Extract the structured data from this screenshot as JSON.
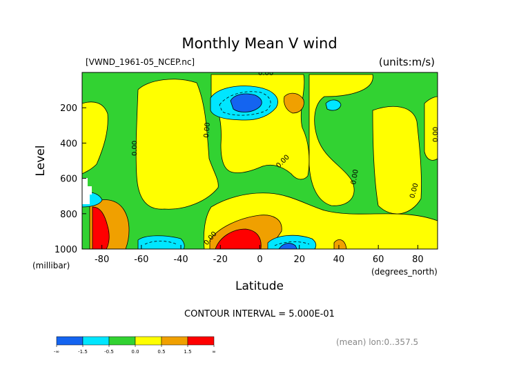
{
  "chart_data": {
    "type": "heatmap",
    "title": "Monthly Mean V wind",
    "file_label": "[VWND_1961-05_NCEP.nc]",
    "units_label": "(units:m/s)",
    "xlabel": "Latitude",
    "x_units": "(degrees_north)",
    "ylabel": "Level",
    "y_units": "(millibar)",
    "xlim": [
      -90,
      90
    ],
    "ylim": [
      1000,
      0
    ],
    "x_ticks": [
      -80,
      -60,
      -40,
      -20,
      0,
      20,
      40,
      60,
      80
    ],
    "y_ticks": [
      200,
      400,
      600,
      800,
      1000
    ],
    "contour_interval": "CONTOUR INTERVAL = 5.000E-01",
    "footer_note": "(mean) lon:0..357.5",
    "contour_labels": [
      "0.00",
      "0.00",
      "0.00",
      "0.00",
      "0.00",
      "0.00",
      "0.00",
      "0.00",
      "0.00"
    ],
    "colorbar": {
      "colors": [
        "#1464f0",
        "#00e6ff",
        "#32d232",
        "#ffff00",
        "#f0a000",
        "#ff0000"
      ],
      "labels": [
        "-∞",
        "-1.5",
        "-0.5",
        "0.0",
        "0.5",
        "1.5",
        "∞"
      ]
    }
  }
}
